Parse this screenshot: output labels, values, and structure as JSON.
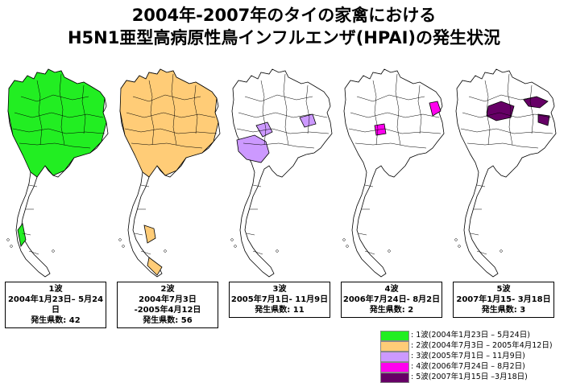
{
  "title": {
    "line1": "2004年-2007年のタイの家禽における",
    "line2": "H5N1亜型高病原性鳥インフルエンザ(HPAI)の発生状況"
  },
  "waves": [
    {
      "label": "1波",
      "period": "2004年1月23日– 5月24日",
      "count_line": "発生県数: 42",
      "color": "#22ee22"
    },
    {
      "label": "2波",
      "period": "2004年7月3日",
      "period2": "-2005年4月12日",
      "count_line": "発生県数: 56",
      "color": "#ffcc77"
    },
    {
      "label": "3波",
      "period": "2005年7月1日- 11月9日",
      "count_line": "発生県数: 11",
      "color": "#cc99ff"
    },
    {
      "label": "4波",
      "period": "2006年7月24日- 8月2日",
      "count_line": "発生県数: 2",
      "color": "#ff00ee"
    },
    {
      "label": "5波",
      "period": "2007年1月15- 3月18日",
      "count_line": "発生県数: 3",
      "color": "#660066"
    }
  ],
  "legend": [
    {
      "text": ": 1波(2004年1月23日 – 5月24日)",
      "color": "#22ee22"
    },
    {
      "text": ": 2波(2004年7月3日 – 2005年4月12日)",
      "color": "#ffcc77"
    },
    {
      "text": ": 3波(2005年7月1日 – 11月9日)",
      "color": "#cc99ff"
    },
    {
      "text": ": 4波(2006年7月24日 – 8月2日)",
      "color": "#ff00ee"
    },
    {
      "text": ": 5波(2007年1月15日 –3月18日)",
      "color": "#660066"
    }
  ]
}
